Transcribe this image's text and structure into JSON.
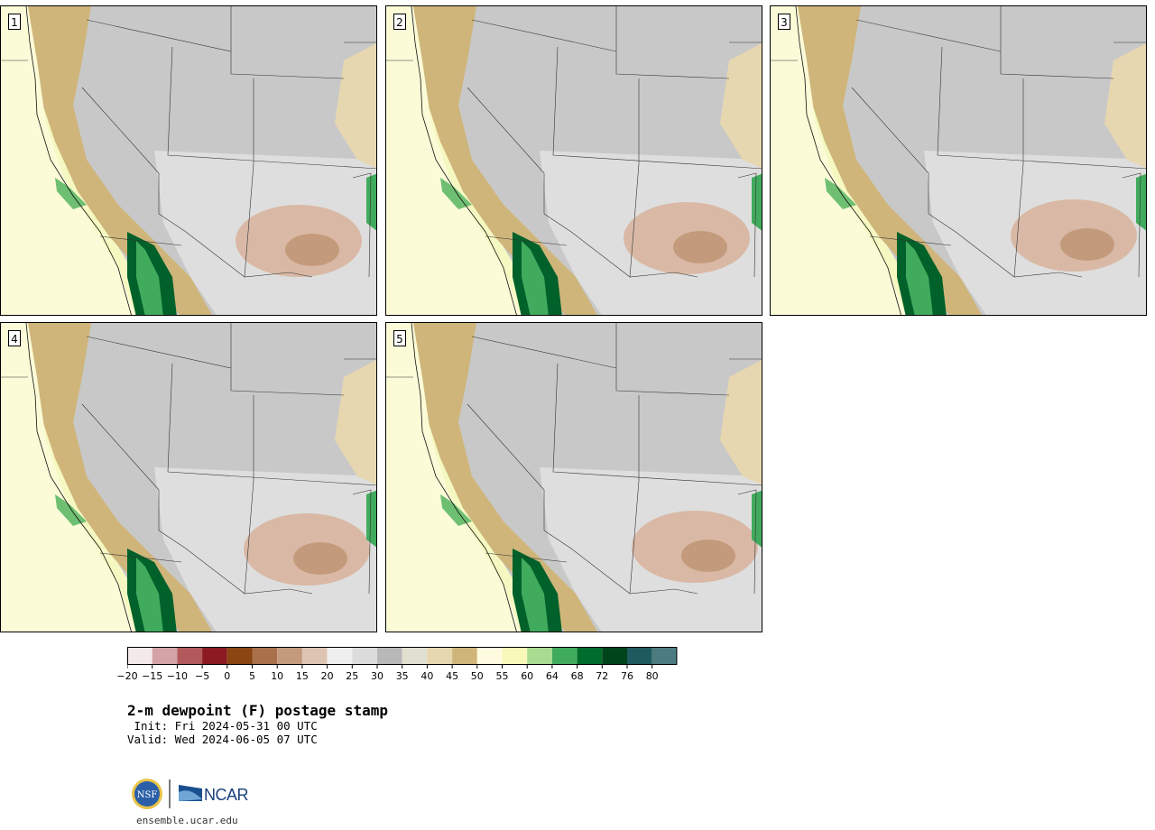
{
  "figure": {
    "title": "2-m dewpoint (F) postage stamp",
    "init": " Init: Fri 2024-05-31 00 UTC",
    "valid": "Valid: Wed 2024-06-05 07 UTC",
    "site": "ensemble.ucar.edu",
    "logo_text": "NCAR"
  },
  "panels": [
    {
      "label": "1"
    },
    {
      "label": "2"
    },
    {
      "label": "3"
    },
    {
      "label": "4"
    },
    {
      "label": "5"
    }
  ],
  "colorbar": {
    "ticks": [
      "−20",
      "−15",
      "−10",
      "−5",
      "0",
      "5",
      "10",
      "15",
      "20",
      "25",
      "30",
      "35",
      "40",
      "45",
      "50",
      "55",
      "60",
      "64",
      "68",
      "72",
      "76",
      "80"
    ],
    "colors": [
      "#f4e9ea",
      "#d4a3a7",
      "#b2595c",
      "#8b1a22",
      "#8b4513",
      "#a8714b",
      "#c49a7c",
      "#dec4b3",
      "#efefef",
      "#dcdcdc",
      "#b8b8b8",
      "#e0e0d0",
      "#e6d7b0",
      "#cfb57a",
      "#fffbe0",
      "#f8f8b8",
      "#a8dc90",
      "#41ab5d",
      "#006d2c",
      "#00441b",
      "#1f5a5e",
      "#4c7c80"
    ]
  }
}
